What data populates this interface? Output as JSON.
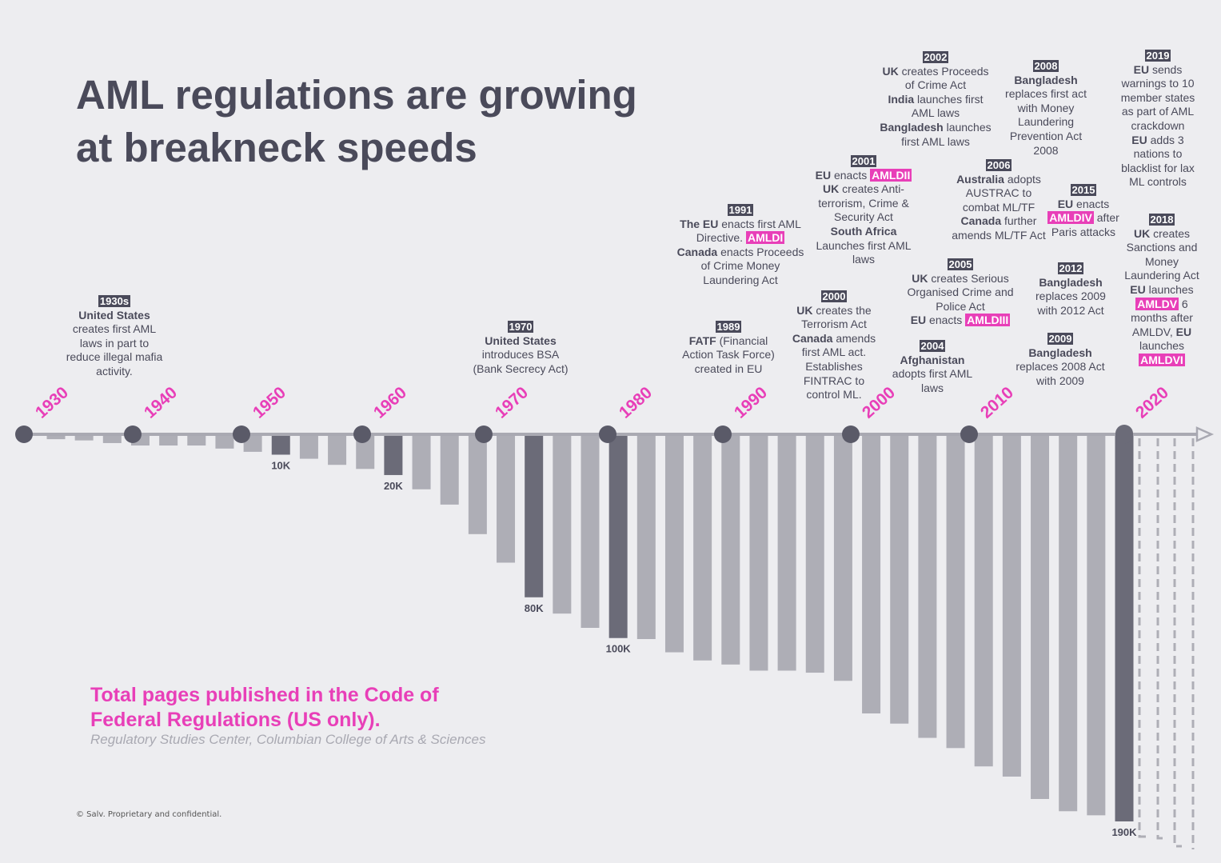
{
  "chart_data": {
    "type": "bar",
    "title": [
      "AML regulations are growing",
      "at breakneck speeds"
    ],
    "subtitle": "Total pages published in the Code of Federal Regulations (US only).",
    "source": "Regulatory Studies Center, Columbian College of Arts & Sciences",
    "footer": "© Salv. Proprietary and confidential.",
    "decades": [
      "1930",
      "1940",
      "1950",
      "1960",
      "1970",
      "1980",
      "1990",
      "2000",
      "2010",
      "2020"
    ],
    "values": [
      2400,
      3000,
      4300,
      5500,
      5500,
      5500,
      7000,
      8600,
      10000,
      12000,
      15000,
      17000,
      20000,
      27000,
      34500,
      49000,
      63000,
      80000,
      88000,
      95000,
      100000,
      100500,
      107000,
      111000,
      113000,
      116000,
      116000,
      117000,
      121000,
      137000,
      142000,
      149000,
      154000,
      163000,
      168000,
      179000,
      185000,
      187000,
      190000
    ],
    "value_labels": [
      null,
      null,
      null,
      null,
      null,
      null,
      null,
      null,
      "10K",
      null,
      null,
      null,
      "20K",
      null,
      null,
      null,
      null,
      "80K",
      null,
      null,
      "100K",
      null,
      null,
      null,
      null,
      null,
      null,
      null,
      null,
      null,
      null,
      null,
      null,
      null,
      null,
      null,
      null,
      null,
      "190K"
    ],
    "ylim": [
      0,
      190000
    ],
    "color": "#aeaeb6",
    "highlight_color": "#6b6b78",
    "events": [
      {
        "year": "1930s",
        "lines": [
          [
            {
              "text": "United States",
              "style": "bold"
            },
            {
              "text": " creates first AML laws in part to reduce illegal mafia activity.",
              "style": "plain"
            }
          ]
        ]
      },
      {
        "year": "1970",
        "lines": [
          [
            {
              "text": "United States",
              "style": "bold"
            },
            {
              "text": " introduces BSA (Bank Secrecy Act)",
              "style": "plain"
            }
          ]
        ]
      },
      {
        "year": "1989",
        "lines": [
          [
            {
              "text": "FATF",
              "style": "bold"
            },
            {
              "text": " (Financial Action Task Force) created in EU",
              "style": "plain"
            }
          ]
        ]
      },
      {
        "year": "1991",
        "lines": [
          [
            {
              "text": "The EU",
              "style": "bold"
            },
            {
              "text": " enacts first AML Directive. ",
              "style": "plain"
            },
            {
              "text": "AMLDI",
              "style": "tag"
            }
          ],
          [
            {
              "text": "Canada",
              "style": "bold"
            },
            {
              "text": " enacts Proceeds of Crime Money Laundering Act",
              "style": "plain"
            }
          ]
        ]
      },
      {
        "year": "2000",
        "lines": [
          [
            {
              "text": "UK",
              "style": "bold"
            },
            {
              "text": " creates the Terrorism Act",
              "style": "plain"
            }
          ],
          [
            {
              "text": "Canada",
              "style": "bold"
            },
            {
              "text": " amends first AML act. Establishes FINTRAC to control ML.",
              "style": "plain"
            }
          ]
        ]
      },
      {
        "year": "2001",
        "lines": [
          [
            {
              "text": "EU",
              "style": "bold"
            },
            {
              "text": " enacts ",
              "style": "plain"
            },
            {
              "text": "AMLDII",
              "style": "tag"
            }
          ],
          [
            {
              "text": "UK",
              "style": "bold"
            },
            {
              "text": " creates Anti-terrorism, Crime & Security Act",
              "style": "plain"
            }
          ],
          [
            {
              "text": "South Africa",
              "style": "bold"
            },
            {
              "text": " Launches first AML laws",
              "style": "plain"
            }
          ]
        ]
      },
      {
        "year": "2002",
        "lines": [
          [
            {
              "text": "UK",
              "style": "bold"
            },
            {
              "text": " creates Proceeds of Crime Act",
              "style": "plain"
            }
          ],
          [
            {
              "text": "India",
              "style": "bold"
            },
            {
              "text": " launches first AML laws",
              "style": "plain"
            }
          ],
          [
            {
              "text": "Bangladesh",
              "style": "bold"
            },
            {
              "text": " launches first AML laws",
              "style": "plain"
            }
          ]
        ]
      },
      {
        "year": "2004",
        "lines": [
          [
            {
              "text": "Afghanistan",
              "style": "bold"
            },
            {
              "text": " adopts first AML laws",
              "style": "plain"
            }
          ]
        ]
      },
      {
        "year": "2005",
        "lines": [
          [
            {
              "text": "UK",
              "style": "bold"
            },
            {
              "text": " creates Serious Organised Crime and Police Act",
              "style": "plain"
            }
          ],
          [
            {
              "text": "EU",
              "style": "bold"
            },
            {
              "text": " enacts ",
              "style": "plain"
            },
            {
              "text": "AMLDIII",
              "style": "tag"
            }
          ]
        ]
      },
      {
        "year": "2006",
        "lines": [
          [
            {
              "text": "Australia",
              "style": "bold"
            },
            {
              "text": " adopts AUSTRAC to combat ML/TF",
              "style": "plain"
            }
          ],
          [
            {
              "text": "Canada",
              "style": "bold"
            },
            {
              "text": " further amends ML/TF Act",
              "style": "plain"
            }
          ]
        ]
      },
      {
        "year": "2008",
        "lines": [
          [
            {
              "text": "Bangladesh",
              "style": "bold"
            },
            {
              "text": " replaces first act with Money Laundering Prevention Act 2008",
              "style": "plain"
            }
          ]
        ]
      },
      {
        "year": "2009",
        "lines": [
          [
            {
              "text": "Bangladesh",
              "style": "bold"
            },
            {
              "text": " replaces 2008 Act with 2009",
              "style": "plain"
            }
          ]
        ]
      },
      {
        "year": "2012",
        "lines": [
          [
            {
              "text": "Bangladesh",
              "style": "bold"
            },
            {
              "text": " replaces 2009 with 2012 Act",
              "style": "plain"
            }
          ]
        ]
      },
      {
        "year": "2015",
        "lines": [
          [
            {
              "text": "EU",
              "style": "bold"
            },
            {
              "text": " enacts ",
              "style": "plain"
            },
            {
              "text": "AMLDIV",
              "style": "tag"
            },
            {
              "text": " after Paris attacks",
              "style": "plain"
            }
          ]
        ]
      },
      {
        "year": "2018",
        "lines": [
          [
            {
              "text": "UK",
              "style": "bold"
            },
            {
              "text": " creates Sanctions and Money Laundering Act",
              "style": "plain"
            }
          ],
          [
            {
              "text": "EU",
              "style": "bold"
            },
            {
              "text": " launches ",
              "style": "plain"
            },
            {
              "text": "AMLDV",
              "style": "tag"
            },
            {
              "text": " 6 months after AMLDV, ",
              "style": "plain"
            },
            {
              "text": "EU",
              "style": "bold"
            },
            {
              "text": " launches ",
              "style": "plain"
            },
            {
              "text": "AMLDVI",
              "style": "tag"
            }
          ]
        ]
      },
      {
        "year": "2019",
        "lines": [
          [
            {
              "text": "EU",
              "style": "bold"
            },
            {
              "text": " sends warnings to 10 member states as part of AML crackdown",
              "style": "plain"
            }
          ],
          [
            {
              "text": "EU",
              "style": "bold"
            },
            {
              "text": " adds 3 nations to blacklist for lax ML controls",
              "style": "plain"
            }
          ]
        ]
      }
    ]
  }
}
